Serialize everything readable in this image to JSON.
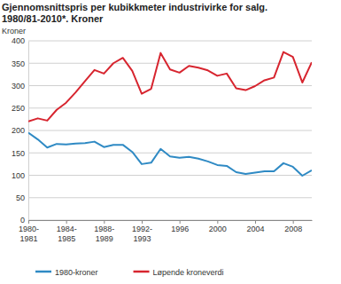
{
  "chart_data": {
    "type": "line",
    "title": "Gjennomsnittspris per kubikkmeter industrivirke for salg. 1980/81-2010*. Kroner",
    "y_label": "Kroner",
    "categories": [
      "1980-1981",
      null,
      null,
      null,
      "1984-1985",
      null,
      null,
      null,
      "1988-1989",
      null,
      null,
      null,
      "1992-1993",
      null,
      null,
      null,
      "1996",
      null,
      null,
      null,
      "2000",
      null,
      null,
      null,
      "2004",
      null,
      null,
      null,
      "2008",
      null,
      null
    ],
    "series": [
      {
        "name": "1980-kroner",
        "color": "#2f8ac4",
        "values": [
          195,
          180,
          162,
          170,
          169,
          171,
          172,
          175,
          163,
          168,
          168,
          152,
          125,
          128,
          159,
          142,
          139,
          141,
          137,
          131,
          123,
          121,
          107,
          103,
          106,
          109,
          109,
          127,
          119,
          99,
          111
        ]
      },
      {
        "name": "Løpende kroneverdi",
        "color": "#d7252f",
        "values": [
          220,
          227,
          222,
          246,
          262,
          285,
          310,
          335,
          327,
          350,
          362,
          333,
          282,
          293,
          373,
          336,
          329,
          344,
          340,
          334,
          322,
          327,
          294,
          290,
          299,
          312,
          318,
          375,
          364,
          307,
          352
        ]
      }
    ],
    "ylim": [
      0,
      400
    ],
    "yticks": [
      0,
      50,
      100,
      150,
      200,
      250,
      300,
      350,
      400
    ],
    "grid": true,
    "legend": "bottom"
  }
}
